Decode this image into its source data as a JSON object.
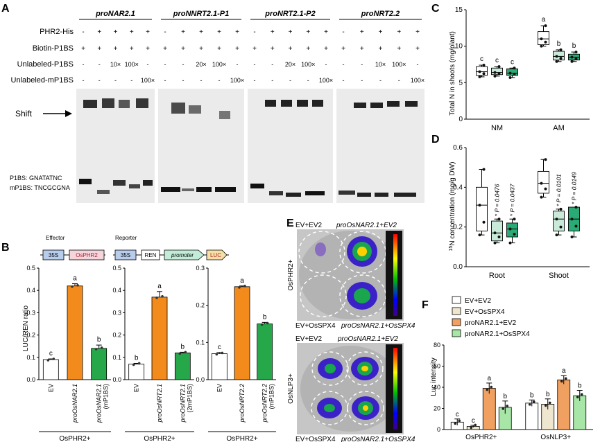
{
  "panelA": {
    "letter": "A",
    "promoters": [
      "proNAR2.1",
      "proNNRT2.1-P1",
      "proNRT2.1-P2",
      "proNRT2.2"
    ],
    "row_labels": [
      "PHR2-His",
      "Biotin-P1BS",
      "Unlabeled-P1BS",
      "Unlabeled-mP1BS"
    ],
    "rows": {
      "phr2": [
        "-",
        "+",
        "+",
        "+",
        "+"
      ],
      "biotin": [
        "+",
        "+",
        "+",
        "+",
        "+"
      ],
      "unlabeled": [
        [
          "-",
          "-",
          "10×",
          "100×",
          "-"
        ],
        [
          "-",
          "-",
          "20×",
          "100×",
          "-"
        ],
        [
          "-",
          "-",
          "20×",
          "100×",
          "-"
        ],
        [
          "-",
          "-",
          "10×",
          "100×",
          "-"
        ]
      ],
      "mp1bs": [
        "-",
        "-",
        "-",
        "-",
        "100×"
      ]
    },
    "shift_label": "Shift",
    "seq1": "P1BS: GNATATNC",
    "seq2": "mP1BS: TNCGCGNA"
  },
  "panelB": {
    "letter": "B",
    "effector_label": "Effector",
    "reporter_label": "Reporter",
    "effector_boxes": [
      "35S",
      "OsPHR2"
    ],
    "reporter_boxes": [
      "35S",
      "REN",
      "promoter",
      "LUC"
    ],
    "chart_data": [
      {
        "type": "bar",
        "categories": [
          "EV",
          "proOsNAR2.1",
          "proOsNAR2.1 (mP1BS)"
        ],
        "values": [
          0.09,
          0.42,
          0.14
        ],
        "errors": [
          0.003,
          0.01,
          0.015
        ],
        "letters": [
          "c",
          "a",
          "b"
        ],
        "ylabel": "LUC/REN ratio",
        "ylim": [
          0,
          0.5
        ],
        "yticks": [
          "0.0",
          "0.1",
          "0.2",
          "0.3",
          "0.4",
          "0.5"
        ],
        "group": "OsPHR2+"
      },
      {
        "type": "bar",
        "categories": [
          "EV",
          "proOsNRT2.1",
          "proOsNRT2.1 (2mP1BS)"
        ],
        "values": [
          0.07,
          0.37,
          0.12
        ],
        "errors": [
          0.003,
          0.025,
          0.003
        ],
        "letters": [
          "b",
          "a",
          "b"
        ],
        "ylim": [
          0,
          0.5
        ],
        "yticks": [
          "0.0",
          "0.1",
          "0.2",
          "0.3",
          "0.4",
          "0.5"
        ],
        "group": "OsPHR2+"
      },
      {
        "type": "bar",
        "categories": [
          "EV",
          "proOsNRT2.2",
          "proOsNRT2.2 (mP1BS)"
        ],
        "values": [
          0.07,
          0.25,
          0.15
        ],
        "errors": [
          0.003,
          0.002,
          0.004
        ],
        "letters": [
          "c",
          "a",
          "b"
        ],
        "ylim": [
          0,
          0.3
        ],
        "yticks": [
          "0.0",
          "0.1",
          "0.2",
          "0.3"
        ],
        "group": "OsPHR2+"
      }
    ],
    "colors": [
      "#ffffff",
      "#f28a1c",
      "#26a84a"
    ]
  },
  "panelC": {
    "letter": "C",
    "chart_data": {
      "type": "box",
      "categories": [
        "NM",
        "AM"
      ],
      "ylabel": "Total  N in shoots (mg/plant)",
      "ylim": [
        0,
        15
      ],
      "yticks": [
        "0",
        "5",
        "10",
        "15"
      ],
      "groups": [
        {
          "name": "NM",
          "boxes": [
            {
              "min": 5.8,
              "q1": 6.0,
              "median": 6.5,
              "q3": 7.2,
              "max": 7.4,
              "letter": "c"
            },
            {
              "min": 5.9,
              "q1": 6.1,
              "median": 6.4,
              "q3": 7.0,
              "max": 7.2,
              "letter": "c"
            },
            {
              "min": 5.7,
              "q1": 6.0,
              "median": 6.3,
              "q3": 6.9,
              "max": 7.0,
              "letter": "c"
            }
          ]
        },
        {
          "name": "AM",
          "boxes": [
            {
              "min": 10.0,
              "q1": 10.2,
              "median": 11.0,
              "q3": 12.0,
              "max": 12.8,
              "letter": "a"
            },
            {
              "min": 7.9,
              "q1": 8.1,
              "median": 8.6,
              "q3": 9.3,
              "max": 9.5,
              "letter": "b"
            },
            {
              "min": 7.9,
              "q1": 8.1,
              "median": 8.5,
              "q3": 8.9,
              "max": 9.2,
              "letter": "b"
            }
          ]
        }
      ]
    },
    "colors": [
      "#ffffff",
      "#c9ead8",
      "#2aaa74"
    ]
  },
  "panelD": {
    "letter": "D",
    "chart_data": {
      "type": "box",
      "categories": [
        "Root",
        "Shoot"
      ],
      "ylabel": "15N concentration (mg/g DW)",
      "ylabel_sup": "15",
      "ylabel_rest": "N concentration (mg/g DW)",
      "ylim": [
        0,
        0.6
      ],
      "yticks": [
        "0.0",
        "0.2",
        "0.4",
        "0.6"
      ],
      "groups": [
        {
          "name": "Root",
          "boxes": [
            {
              "min": 0.16,
              "q1": 0.18,
              "median": 0.31,
              "q3": 0.4,
              "max": 0.49,
              "p": ""
            },
            {
              "min": 0.12,
              "q1": 0.13,
              "median": 0.17,
              "q3": 0.23,
              "max": 0.24,
              "p": "* P = 0.0476"
            },
            {
              "min": 0.12,
              "q1": 0.15,
              "median": 0.19,
              "q3": 0.22,
              "max": 0.24,
              "p": "* P = 0.0437"
            }
          ]
        },
        {
          "name": "Shoot",
          "boxes": [
            {
              "min": 0.35,
              "q1": 0.37,
              "median": 0.42,
              "q3": 0.48,
              "max": 0.54,
              "p": ""
            },
            {
              "min": 0.16,
              "q1": 0.18,
              "median": 0.24,
              "q3": 0.28,
              "max": 0.29,
              "p": "* P = 0.0101"
            },
            {
              "min": 0.15,
              "q1": 0.18,
              "median": 0.24,
              "q3": 0.3,
              "max": 0.3,
              "p": "* P = 0.0149"
            }
          ]
        }
      ]
    }
  },
  "panelE": {
    "letter": "E",
    "top_labels": [
      "EV+EV2",
      "proOsNAR2.1+EV2"
    ],
    "bottom_labels": [
      "EV+OsSPX4",
      "proOsNAR2.1+OsSPX4"
    ],
    "side1": "OsPHR2+",
    "side2": "OsNLP3+"
  },
  "panelF": {
    "letter": "F",
    "chart_data": {
      "type": "bar",
      "categories": [
        "OsPHR2+",
        "OsNLP3+"
      ],
      "ylabel": "Luc intensity",
      "ylim": [
        0,
        80
      ],
      "yticks": [
        "0",
        "20",
        "40",
        "60",
        "80"
      ],
      "series": [
        {
          "name": "EV+EV2",
          "values": [
            7,
            25
          ],
          "errors": [
            3,
            3
          ],
          "letters": [
            "c",
            "b"
          ],
          "color": "#ffffff"
        },
        {
          "name": "EV+OsSPX4",
          "values": [
            3,
            24
          ],
          "errors": [
            1,
            5
          ],
          "letters": [
            "c",
            "b"
          ],
          "color": "#efe6cf"
        },
        {
          "name": "proNAR2.1+EV2",
          "values": [
            39,
            47
          ],
          "errors": [
            5,
            4
          ],
          "letters": [
            "a",
            "a"
          ],
          "color": "#f0a060"
        },
        {
          "name": "proNAR2.1+OsSPX4",
          "values": [
            21,
            32
          ],
          "errors": [
            6,
            5
          ],
          "letters": [
            "b",
            "b"
          ],
          "color": "#a8e6a8"
        }
      ]
    }
  }
}
